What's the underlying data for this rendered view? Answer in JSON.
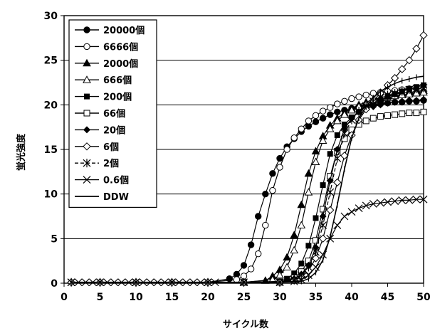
{
  "chart_data": {
    "type": "line",
    "xlabel": "サイクル数",
    "ylabel": "蛍光強度",
    "xlim": [
      0,
      50
    ],
    "ylim": [
      0,
      30
    ],
    "xticks": [
      "0",
      "5",
      "10",
      "15",
      "20",
      "25",
      "30",
      "35",
      "40",
      "45",
      "50"
    ],
    "yticks": [
      "0",
      "5",
      "10",
      "15",
      "20",
      "25",
      "30"
    ],
    "grid": "horizontal",
    "legend_position": "top-left",
    "series": [
      {
        "name": "20000個",
        "marker": "circle-filled",
        "x": [
          1,
          5,
          10,
          15,
          20,
          23,
          24,
          25,
          26,
          27,
          28,
          29,
          30,
          31,
          32,
          33,
          34,
          35,
          36,
          37,
          38,
          39,
          40,
          41,
          42,
          43,
          44,
          45,
          46,
          47,
          48,
          49,
          50
        ],
        "y": [
          0.1,
          0.1,
          0.1,
          0.1,
          0.1,
          0.5,
          1.0,
          2.0,
          4.3,
          7.5,
          10.0,
          12.3,
          14.0,
          15.3,
          16.2,
          17.0,
          17.6,
          18.1,
          18.5,
          18.9,
          19.2,
          19.4,
          19.6,
          19.8,
          19.9,
          20.0,
          20.1,
          20.2,
          20.3,
          20.3,
          20.4,
          20.4,
          20.5
        ]
      },
      {
        "name": "6666個",
        "marker": "circle-open",
        "x": [
          1,
          5,
          10,
          15,
          20,
          24,
          25,
          26,
          27,
          28,
          29,
          30,
          31,
          32,
          33,
          34,
          35,
          36,
          37,
          38,
          39,
          40,
          41,
          42,
          43,
          44,
          45,
          46,
          47,
          48,
          49,
          50
        ],
        "y": [
          0.1,
          0.1,
          0.1,
          0.1,
          0.1,
          0.4,
          0.8,
          1.6,
          3.3,
          6.5,
          10.4,
          13.0,
          15.0,
          16.3,
          17.3,
          18.2,
          18.8,
          19.3,
          19.7,
          20.1,
          20.4,
          20.7,
          20.9,
          21.1,
          21.3,
          21.4,
          21.5,
          21.6,
          21.7,
          21.8,
          21.8,
          21.9
        ]
      },
      {
        "name": "2000個",
        "marker": "triangle-filled",
        "x": [
          1,
          5,
          10,
          15,
          20,
          25,
          28,
          29,
          30,
          31,
          32,
          33,
          34,
          35,
          36,
          37,
          38,
          39,
          40,
          41,
          42,
          43,
          44,
          45,
          46,
          47,
          48,
          49,
          50
        ],
        "y": [
          0.1,
          0.1,
          0.1,
          0.1,
          0.1,
          0.1,
          0.3,
          0.8,
          1.5,
          2.9,
          5.4,
          8.8,
          12.3,
          14.8,
          16.5,
          17.7,
          18.5,
          19.1,
          19.6,
          20.0,
          20.3,
          20.6,
          20.8,
          21.0,
          21.2,
          21.3,
          21.4,
          21.5,
          21.6
        ]
      },
      {
        "name": "666個",
        "marker": "triangle-open",
        "x": [
          1,
          5,
          10,
          15,
          20,
          25,
          29,
          30,
          31,
          32,
          33,
          34,
          35,
          36,
          37,
          38,
          39,
          40,
          41,
          42,
          43,
          44,
          45,
          46,
          47,
          48,
          49,
          50
        ],
        "y": [
          0.1,
          0.1,
          0.1,
          0.1,
          0.1,
          0.1,
          0.4,
          0.9,
          1.8,
          3.7,
          6.5,
          10.2,
          13.6,
          16.0,
          17.3,
          18.2,
          18.9,
          19.4,
          19.8,
          20.1,
          20.4,
          20.6,
          20.8,
          21.0,
          21.1,
          21.2,
          21.3,
          21.4
        ]
      },
      {
        "name": "200個",
        "marker": "square-filled",
        "x": [
          1,
          5,
          10,
          15,
          20,
          25,
          30,
          31,
          32,
          33,
          34,
          35,
          36,
          37,
          38,
          39,
          40,
          41,
          42,
          43,
          44,
          45,
          46,
          47,
          48,
          49,
          50
        ],
        "y": [
          0.1,
          0.1,
          0.1,
          0.1,
          0.1,
          0.1,
          0.2,
          0.5,
          1.1,
          2.2,
          4.2,
          7.3,
          11.0,
          14.5,
          16.6,
          17.8,
          18.6,
          19.2,
          19.7,
          20.1,
          20.5,
          20.9,
          21.2,
          21.5,
          21.8,
          22.0,
          22.2
        ]
      },
      {
        "name": "66個",
        "marker": "square-open",
        "x": [
          1,
          5,
          10,
          15,
          20,
          25,
          30,
          32,
          33,
          34,
          35,
          36,
          37,
          38,
          39,
          40,
          41,
          42,
          43,
          44,
          45,
          46,
          47,
          48,
          49,
          50
        ],
        "y": [
          0.1,
          0.1,
          0.1,
          0.1,
          0.1,
          0.1,
          0.1,
          0.6,
          1.3,
          2.5,
          4.8,
          8.3,
          12.0,
          14.8,
          16.2,
          17.2,
          17.8,
          18.2,
          18.5,
          18.7,
          18.8,
          18.9,
          19.0,
          19.1,
          19.1,
          19.2
        ]
      },
      {
        "name": "20個",
        "marker": "diamond-filled",
        "x": [
          1,
          5,
          10,
          15,
          20,
          25,
          30,
          32,
          33,
          34,
          35,
          36,
          37,
          38,
          39,
          40,
          41,
          42,
          43,
          44,
          45,
          46,
          47,
          48,
          49,
          50
        ],
        "y": [
          0.1,
          0.1,
          0.1,
          0.1,
          0.1,
          0.1,
          0.1,
          0.5,
          1.0,
          2.0,
          4.0,
          7.5,
          11.5,
          15.0,
          17.3,
          18.5,
          19.2,
          19.6,
          19.8,
          20.0,
          20.2,
          20.3,
          20.4,
          20.5,
          20.5,
          20.6
        ]
      },
      {
        "name": "6個",
        "marker": "diamond-open",
        "x": [
          1,
          5,
          10,
          15,
          20,
          25,
          30,
          32,
          33,
          34,
          35,
          36,
          37,
          38,
          39,
          40,
          41,
          42,
          43,
          44,
          45,
          46,
          47,
          48,
          49,
          50
        ],
        "y": [
          0.1,
          0.1,
          0.1,
          0.1,
          0.1,
          0.1,
          0.1,
          0.3,
          0.7,
          1.4,
          2.8,
          5.0,
          8.2,
          11.3,
          14.3,
          16.6,
          18.3,
          19.5,
          20.5,
          21.3,
          22.2,
          23.0,
          24.0,
          25.0,
          26.3,
          27.8
        ]
      },
      {
        "name": "2個",
        "marker": "asterisk",
        "x": [
          1,
          5,
          10,
          15,
          20,
          25,
          30,
          32,
          33,
          34,
          35,
          36,
          37,
          38,
          39,
          40,
          41,
          42,
          43,
          44,
          45,
          46,
          47,
          48,
          49,
          50
        ],
        "y": [
          0.1,
          0.1,
          0.1,
          0.1,
          0.1,
          0.1,
          0.1,
          0.4,
          0.9,
          1.8,
          3.5,
          6.5,
          10.2,
          14.0,
          16.8,
          18.3,
          19.3,
          19.9,
          20.4,
          20.8,
          21.1,
          21.3,
          21.5,
          21.7,
          21.8,
          21.9
        ]
      },
      {
        "name": "0.6個",
        "marker": "cross",
        "x": [
          1,
          5,
          10,
          15,
          20,
          25,
          30,
          32,
          33,
          34,
          35,
          36,
          37,
          38,
          39,
          40,
          41,
          42,
          43,
          44,
          45,
          46,
          47,
          48,
          49,
          50
        ],
        "y": [
          0.1,
          0.1,
          0.1,
          0.1,
          0.1,
          0.1,
          0.1,
          0.2,
          0.4,
          0.9,
          1.8,
          3.2,
          5.0,
          6.5,
          7.5,
          8.0,
          8.4,
          8.7,
          8.9,
          9.0,
          9.1,
          9.2,
          9.3,
          9.3,
          9.4,
          9.4
        ]
      },
      {
        "name": "DDW",
        "marker": "line",
        "x": [
          1,
          5,
          10,
          15,
          20,
          25,
          30,
          33,
          34,
          35,
          36,
          37,
          38,
          39,
          40,
          41,
          42,
          43,
          44,
          45,
          46,
          47,
          48,
          49,
          50
        ],
        "y": [
          0.1,
          0.1,
          0.1,
          0.1,
          0.1,
          0.1,
          0.1,
          0.2,
          0.5,
          1.2,
          2.6,
          5.2,
          8.8,
          12.8,
          16.3,
          18.5,
          19.8,
          20.8,
          21.5,
          22.0,
          22.4,
          22.7,
          22.9,
          23.1,
          23.2
        ]
      }
    ]
  }
}
